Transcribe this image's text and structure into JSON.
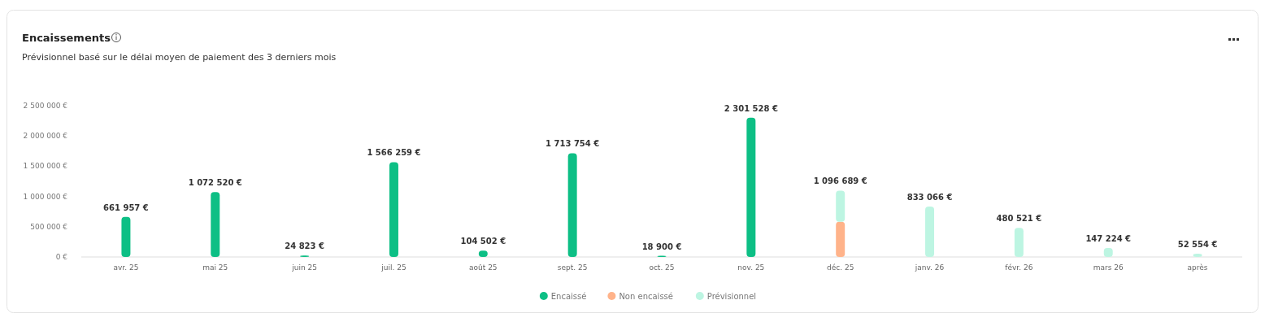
{
  "chart_data": {
    "type": "bar",
    "title": "Encaissements",
    "subtitle": "Prévisionnel basé sur le délai moyen de paiement des 3 derniers mois",
    "categories": [
      "avr. 25",
      "mai 25",
      "juin 25",
      "juil. 25",
      "août 25",
      "sept. 25",
      "oct. 25",
      "nov. 25",
      "déc. 25",
      "janv. 26",
      "févr. 26",
      "mars 26",
      "après"
    ],
    "stacked": true,
    "series": [
      {
        "name": "Encaissé",
        "color": "#0dbf85",
        "values": [
          661957,
          1072520,
          24823,
          1566259,
          104502,
          1713754,
          18900,
          2301528,
          null,
          null,
          null,
          null,
          null
        ]
      },
      {
        "name": "Non encaissé",
        "color": "#ffb38a",
        "values": [
          null,
          null,
          null,
          null,
          null,
          null,
          null,
          null,
          580000,
          null,
          null,
          null,
          null
        ]
      },
      {
        "name": "Prévisionnel",
        "color": "#bdf5e2",
        "values": [
          null,
          null,
          null,
          null,
          null,
          null,
          null,
          null,
          516689,
          833066,
          480521,
          147224,
          52554
        ]
      }
    ],
    "totals": [
      "661 957 €",
      "1 072 520 €",
      "24 823 €",
      "1 566 259 €",
      "104 502 €",
      "1 713 754 €",
      "18 900 €",
      "2 301 528 €",
      "1 096 689 €",
      "833 066 €",
      "480 521 €",
      "147 224 €",
      "52 554 €"
    ],
    "ylim": [
      0,
      2500000
    ],
    "yticks": [
      {
        "value": 0,
        "label": "0 €"
      },
      {
        "value": 500000,
        "label": "500 000 €"
      },
      {
        "value": 1000000,
        "label": "1 000 000 €"
      },
      {
        "value": 1500000,
        "label": "1 500 000 €"
      },
      {
        "value": 2000000,
        "label": "2 000 000 €"
      },
      {
        "value": 2500000,
        "label": "2 500 000 €"
      }
    ],
    "grid": false,
    "legend": "bottom"
  }
}
